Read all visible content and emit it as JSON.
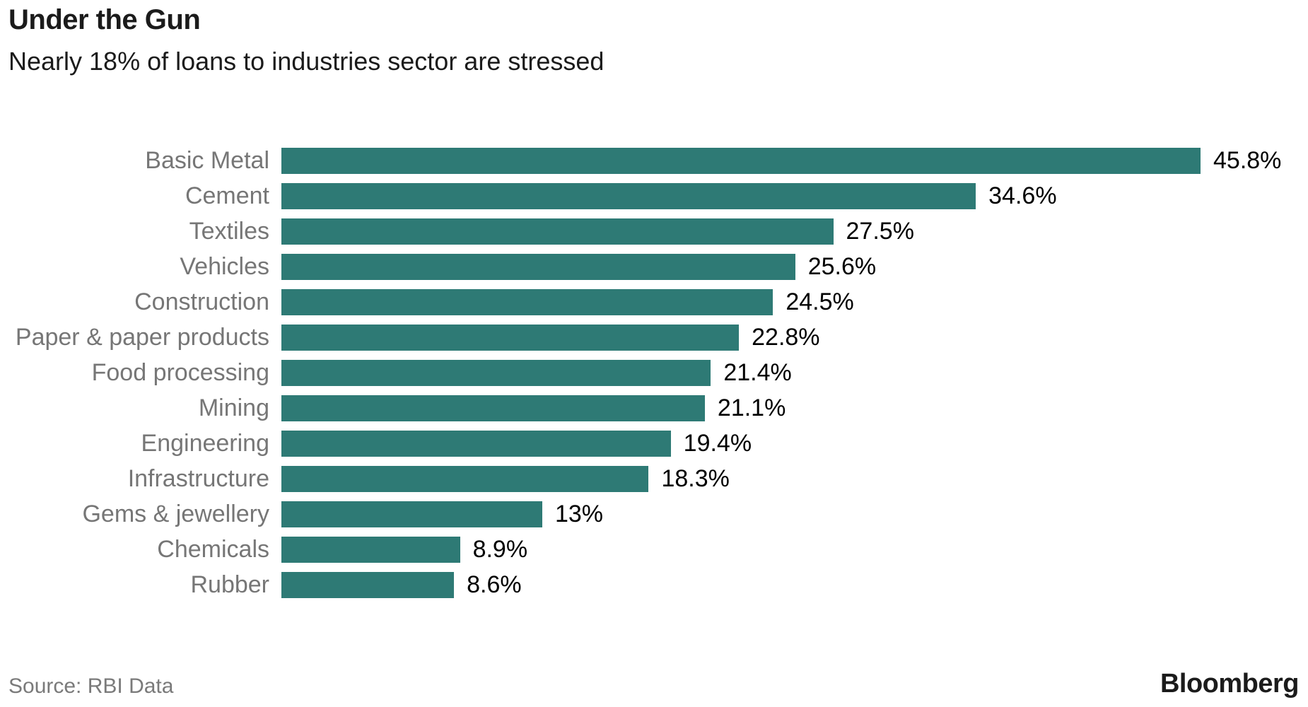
{
  "header": {
    "title": "Under the Gun",
    "subtitle": "Nearly 18% of loans to industries sector are stressed"
  },
  "footer": {
    "source": "Source: RBI Data",
    "brand": "Bloomberg"
  },
  "colors": {
    "bar": "#2e7a75",
    "category_label": "#767676",
    "value_label": "#000000"
  },
  "chart_data": {
    "type": "bar",
    "orientation": "horizontal",
    "title": "Under the Gun",
    "subtitle": "Nearly 18% of loans to industries sector are stressed",
    "categories": [
      "Basic Metal",
      "Cement",
      "Textiles",
      "Vehicles",
      "Construction",
      "Paper & paper products",
      "Food processing",
      "Mining",
      "Engineering",
      "Infrastructure",
      "Gems & jewellery",
      "Chemicals",
      "Rubber"
    ],
    "values": [
      45.8,
      34.6,
      27.5,
      25.6,
      24.5,
      22.8,
      21.4,
      21.1,
      19.4,
      18.3,
      13,
      8.9,
      8.6
    ],
    "value_labels": [
      "45.8%",
      "34.6%",
      "27.5%",
      "25.6%",
      "24.5%",
      "22.8%",
      "21.4%",
      "21.1%",
      "19.4%",
      "18.3%",
      "13%",
      "8.9%",
      "8.6%"
    ],
    "unit": "%",
    "xlim": [
      0,
      45.8
    ],
    "grid": false,
    "legend": false,
    "source": "Source: RBI Data",
    "brand": "Bloomberg"
  }
}
